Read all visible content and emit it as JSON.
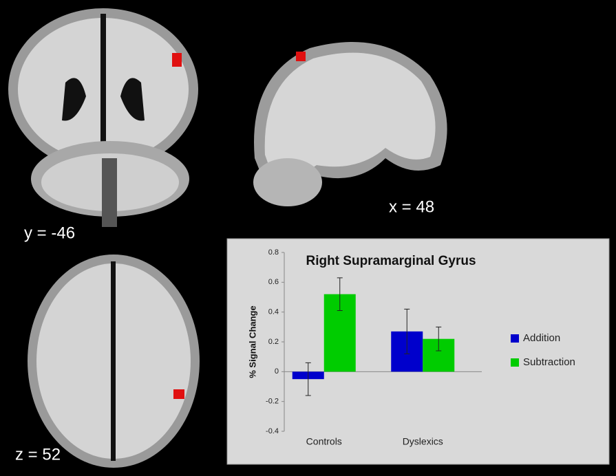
{
  "image_labels": [
    "y = -46",
    "x = 48",
    "z = 52"
  ],
  "chart_data": {
    "type": "bar",
    "title": "Right Supramarginal Gyrus",
    "ylabel": "% Signal Change",
    "categories": [
      "Controls",
      "Dyslexics"
    ],
    "series": [
      {
        "name": "Addition",
        "color": "#0000cc",
        "values": [
          -0.05,
          0.27
        ],
        "errors": [
          0.11,
          0.15
        ]
      },
      {
        "name": "Subtraction",
        "color": "#00cc00",
        "values": [
          0.52,
          0.22
        ],
        "errors": [
          0.11,
          0.08
        ]
      }
    ],
    "ylim": [
      -0.4,
      0.8
    ],
    "yticks": [
      -0.4,
      -0.2,
      0,
      0.2,
      0.4,
      0.6,
      0.8
    ],
    "legend": "right"
  }
}
